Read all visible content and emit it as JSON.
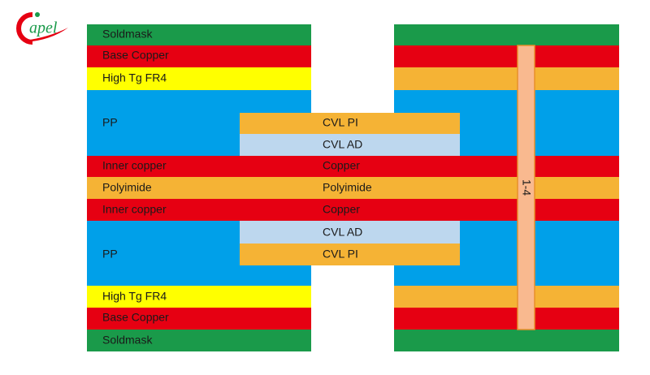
{
  "logo": "apel",
  "left_labels": [
    "Soldmask",
    "Base Copper",
    "High Tg FR4",
    "PP",
    "Inner copper",
    "Polyimide",
    "Inner copper",
    "PP",
    "High Tg FR4",
    "Base Copper",
    "Soldmask"
  ],
  "center_labels": [
    "CVL PI",
    "CVL AD",
    "Copper",
    "Polyimide",
    "Copper",
    "CVL AD",
    "CVL PI"
  ],
  "via_label": "1-4"
}
